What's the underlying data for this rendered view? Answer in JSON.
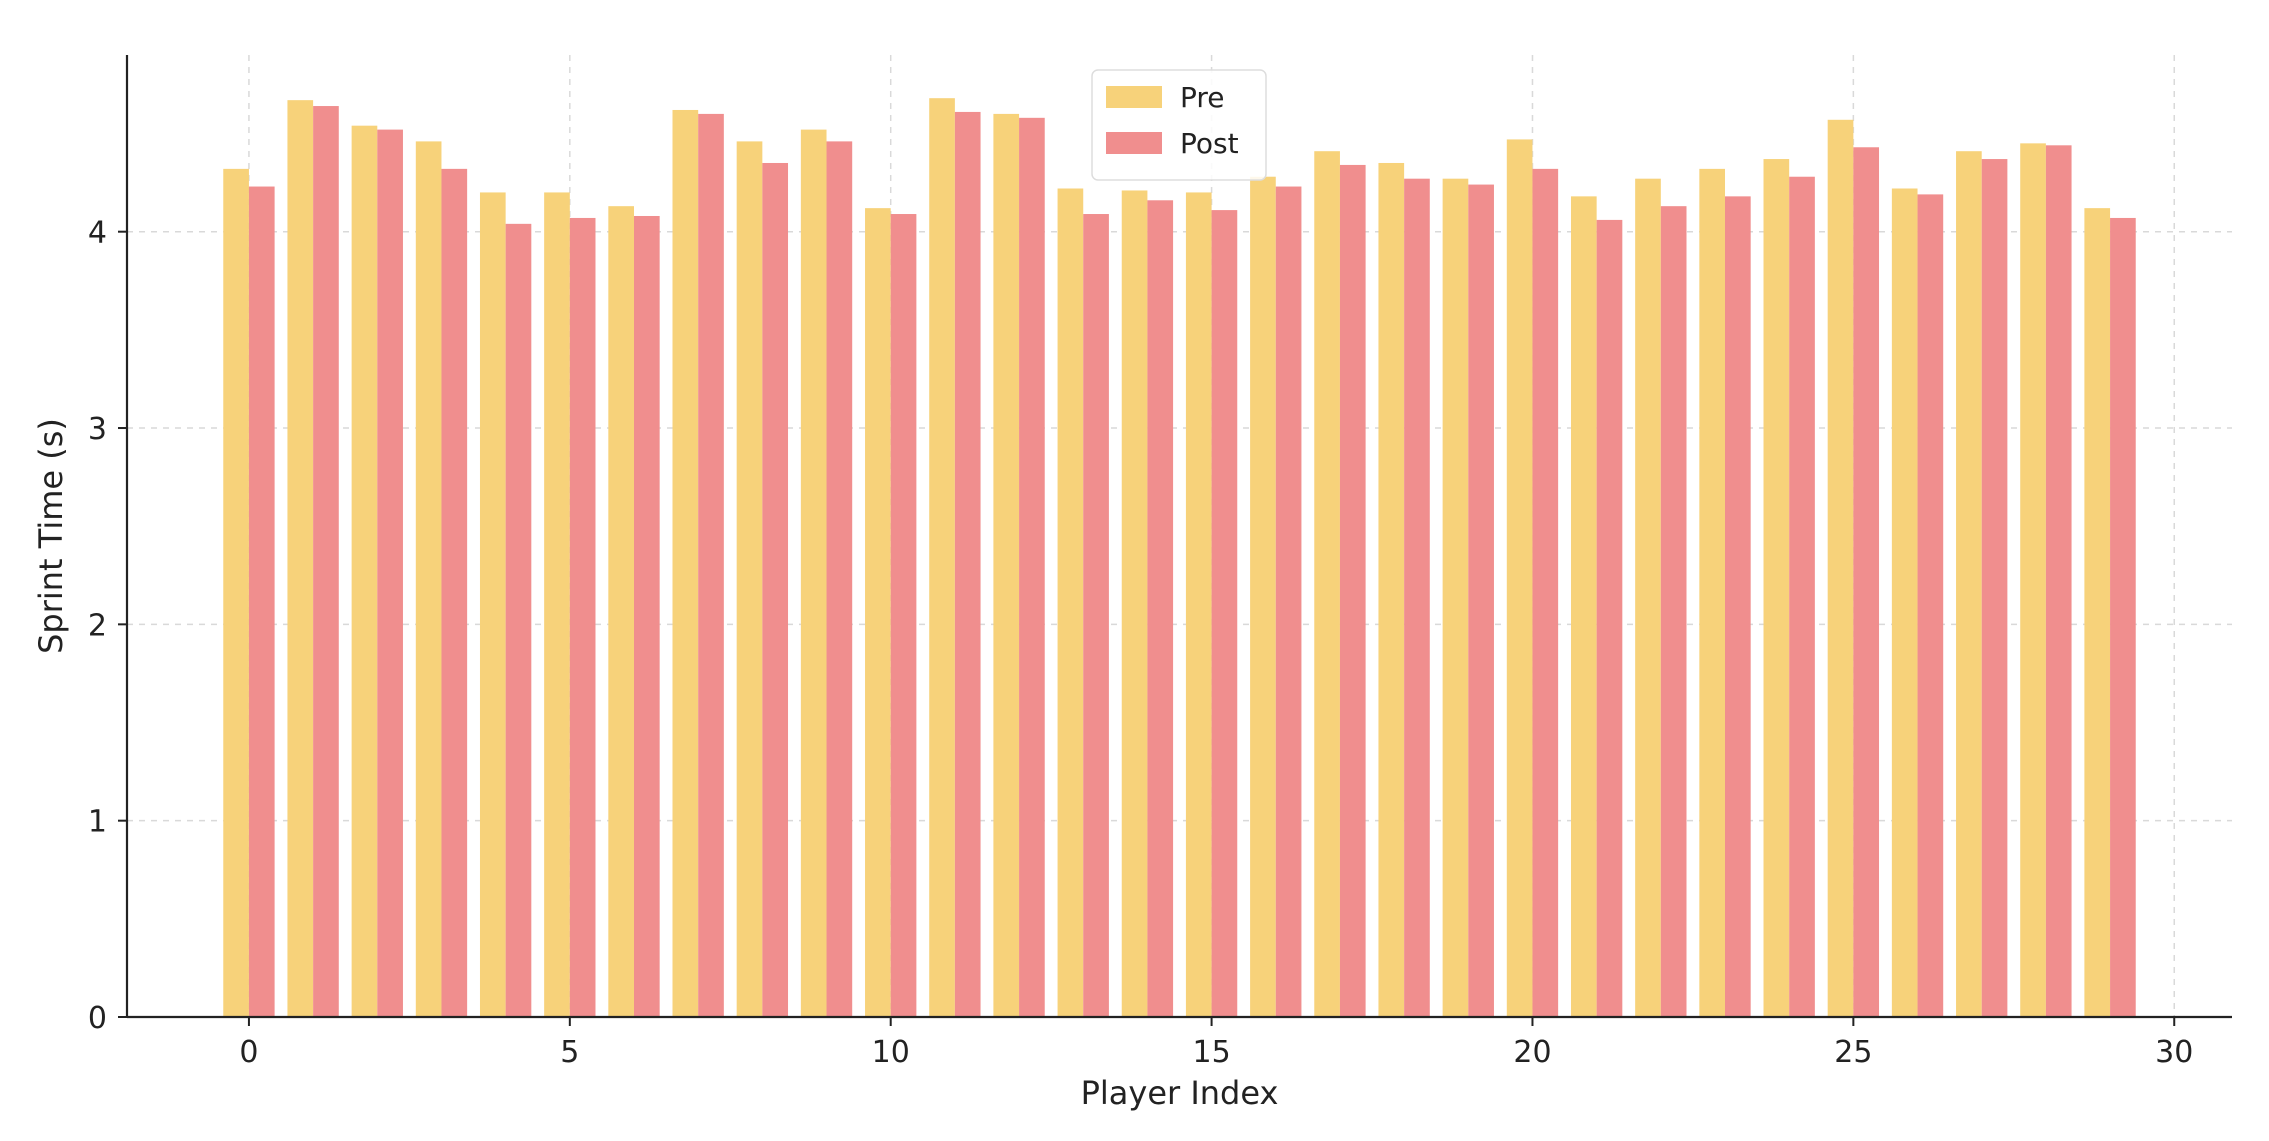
{
  "chart_data": {
    "type": "bar",
    "title": "",
    "xlabel": "Player Index",
    "ylabel": "Sprint Time (s)",
    "x": [
      0,
      1,
      2,
      3,
      4,
      5,
      6,
      7,
      8,
      9,
      10,
      11,
      12,
      13,
      14,
      15,
      16,
      17,
      18,
      19,
      20,
      21,
      22,
      23,
      24,
      25,
      26,
      27,
      28,
      29
    ],
    "series": [
      {
        "name": "Pre",
        "color": "#f7d27a",
        "values": [
          4.32,
          4.67,
          4.54,
          4.46,
          4.2,
          4.2,
          4.13,
          4.62,
          4.46,
          4.52,
          4.12,
          4.68,
          4.6,
          4.22,
          4.21,
          4.2,
          4.28,
          4.41,
          4.35,
          4.27,
          4.47,
          4.18,
          4.27,
          4.32,
          4.37,
          4.57,
          4.22,
          4.41,
          4.45,
          4.12
        ]
      },
      {
        "name": "Post",
        "color": "#f08e8e",
        "values": [
          4.23,
          4.64,
          4.52,
          4.32,
          4.04,
          4.07,
          4.08,
          4.6,
          4.35,
          4.46,
          4.09,
          4.61,
          4.58,
          4.09,
          4.16,
          4.11,
          4.23,
          4.34,
          4.27,
          4.24,
          4.32,
          4.06,
          4.13,
          4.18,
          4.28,
          4.43,
          4.19,
          4.37,
          4.44,
          4.07
        ]
      }
    ],
    "xlim": [
      -1.9,
      30.9
    ],
    "ylim": [
      0,
      4.9
    ],
    "xticks": [
      0,
      5,
      10,
      15,
      20,
      25,
      30
    ],
    "yticks": [
      0,
      1,
      2,
      3,
      4
    ],
    "grid": true,
    "legend_position": "top-center"
  }
}
